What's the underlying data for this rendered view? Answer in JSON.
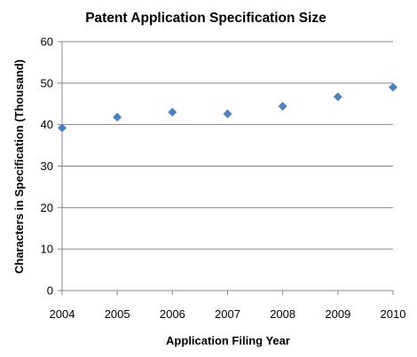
{
  "chart_data": {
    "type": "scatter",
    "title": "Patent Application Specification Size",
    "xlabel": "Application Filing Year",
    "ylabel": "Characters in Specification (Thousand)",
    "x": [
      2004,
      2005,
      2006,
      2007,
      2008,
      2009,
      2010
    ],
    "y": [
      39.2,
      41.8,
      43.0,
      42.6,
      44.4,
      46.7,
      49.0
    ],
    "xlim": [
      2004,
      2010
    ],
    "ylim": [
      0,
      60
    ],
    "xticks": [
      "2004",
      "2005",
      "2006",
      "2007",
      "2008",
      "2009",
      "2010"
    ],
    "yticks": [
      "0",
      "10",
      "20",
      "30",
      "40",
      "50",
      "60"
    ],
    "grid": "horizontal",
    "legend": "none",
    "marker": "diamond",
    "marker_color": "#4f81bd",
    "grid_color": "#868686"
  }
}
